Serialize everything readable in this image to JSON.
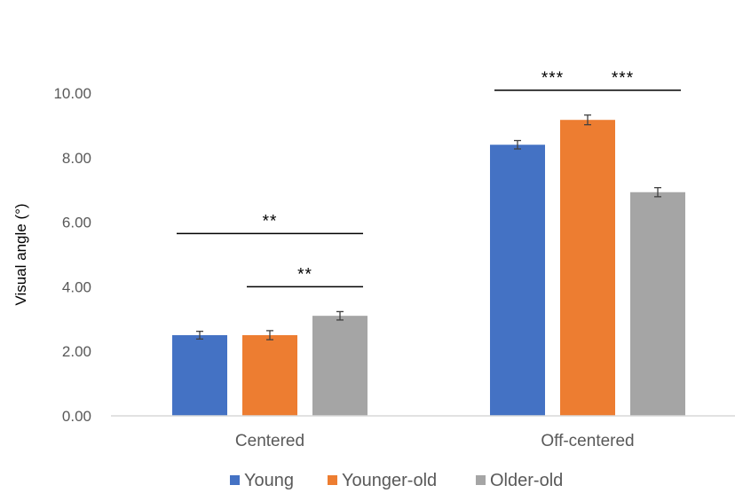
{
  "chart_data": {
    "type": "bar",
    "categories": [
      "Centered",
      "Off-centered"
    ],
    "series": [
      {
        "name": "Young",
        "color": "#4472C4",
        "values": [
          2.5,
          8.4
        ],
        "errors": [
          0.12,
          0.13
        ]
      },
      {
        "name": "Younger-old",
        "color": "#ED7D31",
        "values": [
          2.5,
          9.17
        ],
        "errors": [
          0.14,
          0.15
        ]
      },
      {
        "name": "Older-old",
        "color": "#A5A5A5",
        "values": [
          3.1,
          6.93
        ],
        "errors": [
          0.13,
          0.14
        ]
      }
    ],
    "title": "",
    "xlabel": "",
    "ylabel": "Visual angle (°)",
    "ylim": [
      0,
      10
    ],
    "yticks": [
      "0.00",
      "2.00",
      "4.00",
      "6.00",
      "8.00",
      "10.00"
    ],
    "grid": false,
    "legend_position": "bottom",
    "significance": [
      {
        "category": 0,
        "from_series": 0,
        "to_series": 2,
        "label": "**",
        "level": 2
      },
      {
        "category": 0,
        "from_series": 1,
        "to_series": 2,
        "label": "**",
        "level": 1
      },
      {
        "category": 1,
        "from_series": 0,
        "to_series": 2,
        "label": "***",
        "level": 3
      },
      {
        "category": 1,
        "from_series": 0,
        "to_series": 1,
        "label": "***",
        "level": 1
      },
      {
        "category": 1,
        "from_series": 1,
        "to_series": 2,
        "label": "***",
        "level": 1
      }
    ]
  }
}
